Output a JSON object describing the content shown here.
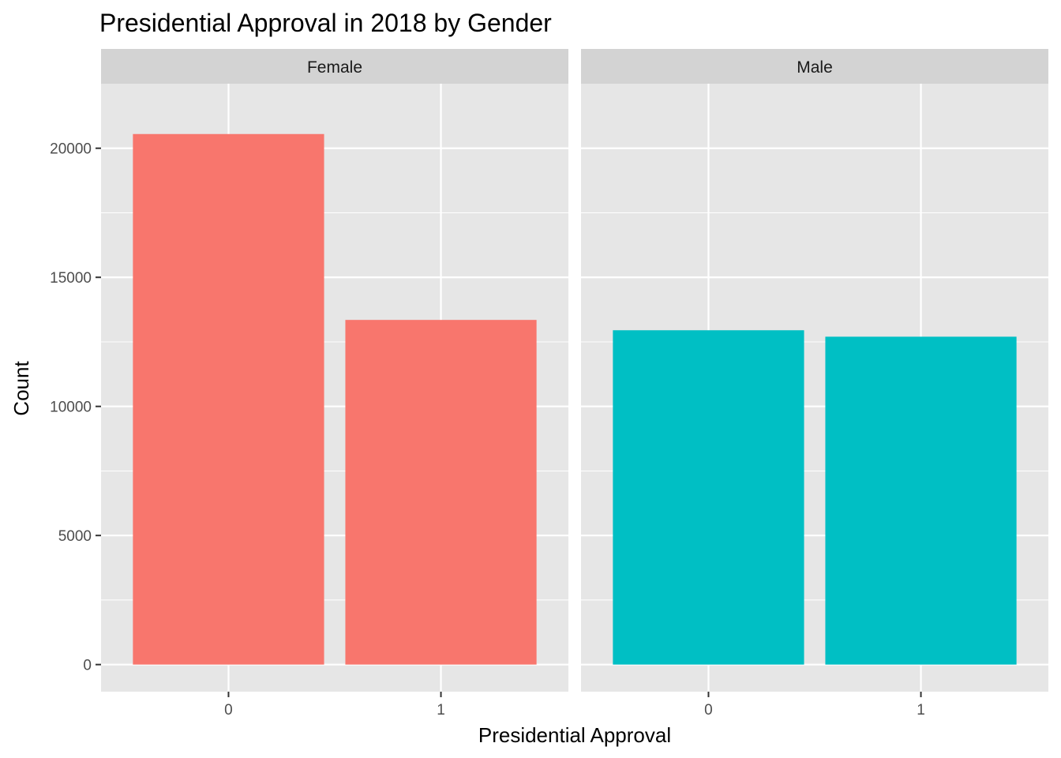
{
  "chart_data": {
    "type": "bar",
    "title": "Presidential Approval in 2018 by Gender",
    "xlabel": "Presidential Approval",
    "ylabel": "Count",
    "ylim": [
      -1050,
      22500
    ],
    "yticks": [
      0,
      5000,
      10000,
      15000,
      20000
    ],
    "y_tick_labels": [
      "0",
      "5000",
      "10000",
      "15000",
      "20000"
    ],
    "grid": true,
    "legend": "none",
    "facets": [
      {
        "name": "Female",
        "color": "#F8766D",
        "categories": [
          "0",
          "1"
        ],
        "values": [
          20550,
          13350
        ]
      },
      {
        "name": "Male",
        "color": "#00BFC4",
        "categories": [
          "0",
          "1"
        ],
        "values": [
          12950,
          12700
        ]
      }
    ]
  },
  "colors": {
    "panel_background": "#E6E6E6",
    "strip_background": "#D3D3D3",
    "grid": "#FFFFFF"
  }
}
